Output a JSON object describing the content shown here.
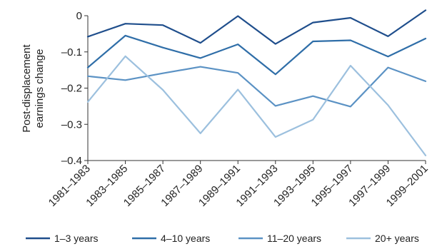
{
  "chart_data": {
    "type": "line",
    "ylabel": [
      "Post-displacement",
      "earnings change"
    ],
    "ylim": [
      -0.4,
      0
    ],
    "yticks": [
      {
        "value": 0,
        "label": "0"
      },
      {
        "value": -0.1,
        "label": "–0.1"
      },
      {
        "value": -0.2,
        "label": "–0.2"
      },
      {
        "value": -0.3,
        "label": "–0.3"
      },
      {
        "value": -0.4,
        "label": "–0.4"
      }
    ],
    "categories": [
      "1981–1983",
      "1983–1985",
      "1985–1987",
      "1987–1989",
      "1989–1991",
      "1991–1993",
      "1993–1995",
      "1995–1997",
      "1997–1999",
      "1999–2001"
    ],
    "grid": false,
    "legend": "bottom",
    "series": [
      {
        "name": "1–3 years",
        "color": "#1f4e8c",
        "values": [
          -0.058,
          -0.022,
          -0.026,
          -0.075,
          -0.001,
          -0.078,
          -0.019,
          -0.006,
          -0.057,
          0.015
        ]
      },
      {
        "name": "4–10 years",
        "color": "#2f6ea8",
        "values": [
          -0.143,
          -0.055,
          -0.088,
          -0.117,
          -0.079,
          -0.162,
          -0.071,
          -0.068,
          -0.113,
          -0.063
        ]
      },
      {
        "name": "11–20 years",
        "color": "#5b92c4",
        "values": [
          -0.167,
          -0.178,
          -0.159,
          -0.141,
          -0.158,
          -0.249,
          -0.222,
          -0.251,
          -0.143,
          -0.181
        ]
      },
      {
        "name": "20+ years",
        "color": "#9cc0de",
        "values": [
          -0.238,
          -0.112,
          -0.205,
          -0.325,
          -0.204,
          -0.335,
          -0.287,
          -0.138,
          -0.247,
          -0.386
        ]
      }
    ]
  }
}
